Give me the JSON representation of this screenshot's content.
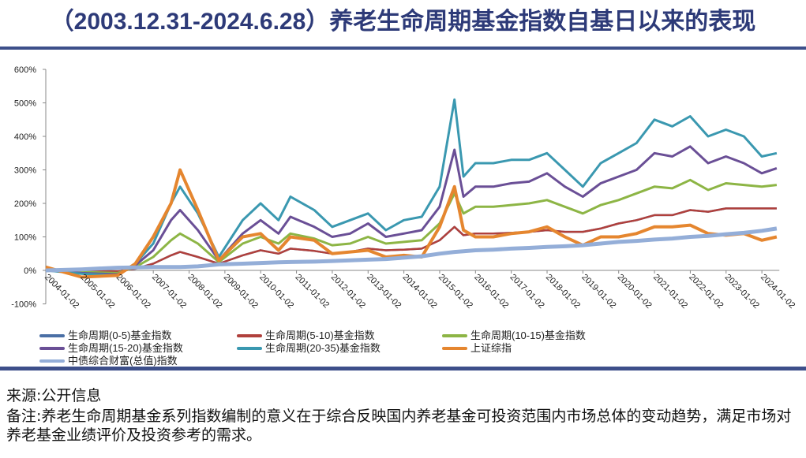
{
  "title": "（2003.12.31-2024.6.28）养老生命周期基金指数自基日以来的表现",
  "footer": {
    "source": "来源:公开信息",
    "note": "备注:养老生命周期基金系列指数编制的意义在于综合反映国内养老基金可投资范围内市场总体的变动趋势，满足市场对养老基金业绩评价及投资参考的需求。"
  },
  "chart_data": {
    "type": "line",
    "ylim": [
      -100,
      600
    ],
    "yticks": [
      "-100%",
      "0%",
      "100%",
      "200%",
      "300%",
      "400%",
      "500%",
      "600%"
    ],
    "ytick_values": [
      -100,
      0,
      100,
      200,
      300,
      400,
      500,
      600
    ],
    "xticks": [
      "2004-01-02",
      "2005-01-02",
      "2006-01-02",
      "2007-01-02",
      "2008-01-02",
      "2009-01-02",
      "2010-01-02",
      "2011-01-02",
      "2012-01-02",
      "2013-01-02",
      "2014-01-02",
      "2015-01-02",
      "2016-01-02",
      "2017-01-02",
      "2018-01-02",
      "2019-01-02",
      "2020-01-02",
      "2021-01-02",
      "2022-01-02",
      "2023-01-02",
      "2024-01-02"
    ],
    "xlim": [
      "2004-01-02",
      "2024-06-28"
    ],
    "grid": false,
    "legend_position": "bottom",
    "x": [
      "2004-01",
      "2005-01",
      "2006-01",
      "2006-07",
      "2007-01",
      "2007-07",
      "2007-10",
      "2008-04",
      "2008-11",
      "2009-07",
      "2010-01",
      "2010-07",
      "2010-11",
      "2011-07",
      "2012-01",
      "2012-07",
      "2013-01",
      "2013-07",
      "2014-01",
      "2014-07",
      "2015-01",
      "2015-06",
      "2015-09",
      "2016-01",
      "2016-07",
      "2017-01",
      "2017-07",
      "2018-01",
      "2018-07",
      "2019-01",
      "2019-07",
      "2020-01",
      "2020-07",
      "2021-01",
      "2021-07",
      "2022-01",
      "2022-07",
      "2023-01",
      "2023-07",
      "2024-01",
      "2024-06"
    ],
    "series": [
      {
        "name": "生命周期(0-5)基金指数",
        "color": "#4a6fa5",
        "values": [
          0,
          -2,
          -3,
          5,
          20,
          45,
          55,
          40,
          20,
          45,
          60,
          50,
          65,
          58,
          50,
          55,
          65,
          60,
          62,
          65,
          90,
          130,
          105,
          110,
          110,
          112,
          115,
          120,
          115,
          115,
          125,
          140,
          150,
          165,
          165,
          180,
          175,
          185,
          185,
          185,
          185
        ],
        "hidden_behind": true
      },
      {
        "name": "生命周期(5-10)基金指数",
        "color": "#b0403c",
        "values": [
          0,
          -2,
          -3,
          5,
          20,
          45,
          55,
          40,
          20,
          45,
          60,
          50,
          65,
          58,
          50,
          55,
          65,
          60,
          62,
          65,
          90,
          130,
          105,
          110,
          110,
          112,
          115,
          120,
          115,
          115,
          125,
          140,
          150,
          165,
          165,
          180,
          175,
          185,
          185,
          185,
          185
        ]
      },
      {
        "name": "生命周期(10-15)基金指数",
        "color": "#8db545",
        "values": [
          0,
          -5,
          -8,
          10,
          40,
          90,
          110,
          80,
          25,
          80,
          100,
          80,
          110,
          95,
          75,
          80,
          100,
          80,
          85,
          90,
          140,
          230,
          170,
          190,
          190,
          195,
          200,
          210,
          190,
          170,
          195,
          210,
          230,
          250,
          245,
          270,
          240,
          260,
          255,
          250,
          255
        ]
      },
      {
        "name": "生命周期(15-20)基金指数",
        "color": "#6a4f96",
        "values": [
          0,
          -8,
          -12,
          15,
          60,
          150,
          180,
          120,
          30,
          110,
          150,
          110,
          160,
          130,
          100,
          110,
          140,
          100,
          110,
          120,
          190,
          360,
          220,
          250,
          250,
          260,
          265,
          290,
          250,
          220,
          260,
          280,
          300,
          350,
          340,
          370,
          320,
          340,
          320,
          290,
          305
        ]
      },
      {
        "name": "生命周期(20-35)基金指数",
        "color": "#3a98b0",
        "values": [
          0,
          -10,
          -15,
          20,
          80,
          200,
          250,
          170,
          40,
          150,
          200,
          150,
          220,
          180,
          130,
          150,
          170,
          120,
          150,
          160,
          250,
          510,
          280,
          320,
          320,
          330,
          330,
          350,
          300,
          250,
          320,
          350,
          380,
          450,
          430,
          460,
          400,
          420,
          400,
          340,
          350
        ]
      },
      {
        "name": "上证综指",
        "color": "#e5862f",
        "values": [
          10,
          -20,
          -15,
          20,
          100,
          200,
          300,
          180,
          30,
          100,
          110,
          60,
          100,
          90,
          50,
          55,
          60,
          40,
          45,
          40,
          130,
          250,
          120,
          100,
          100,
          110,
          115,
          130,
          100,
          75,
          100,
          100,
          110,
          130,
          130,
          135,
          110,
          105,
          110,
          90,
          100
        ]
      },
      {
        "name": "中债综合财富(总值)指数",
        "color": "#94aed8",
        "values": [
          0,
          3,
          8,
          9,
          10,
          10,
          10,
          12,
          18,
          20,
          22,
          24,
          25,
          26,
          28,
          30,
          32,
          34,
          38,
          42,
          50,
          55,
          57,
          60,
          62,
          65,
          67,
          70,
          72,
          75,
          80,
          85,
          88,
          92,
          95,
          100,
          103,
          108,
          112,
          118,
          125
        ]
      }
    ]
  }
}
